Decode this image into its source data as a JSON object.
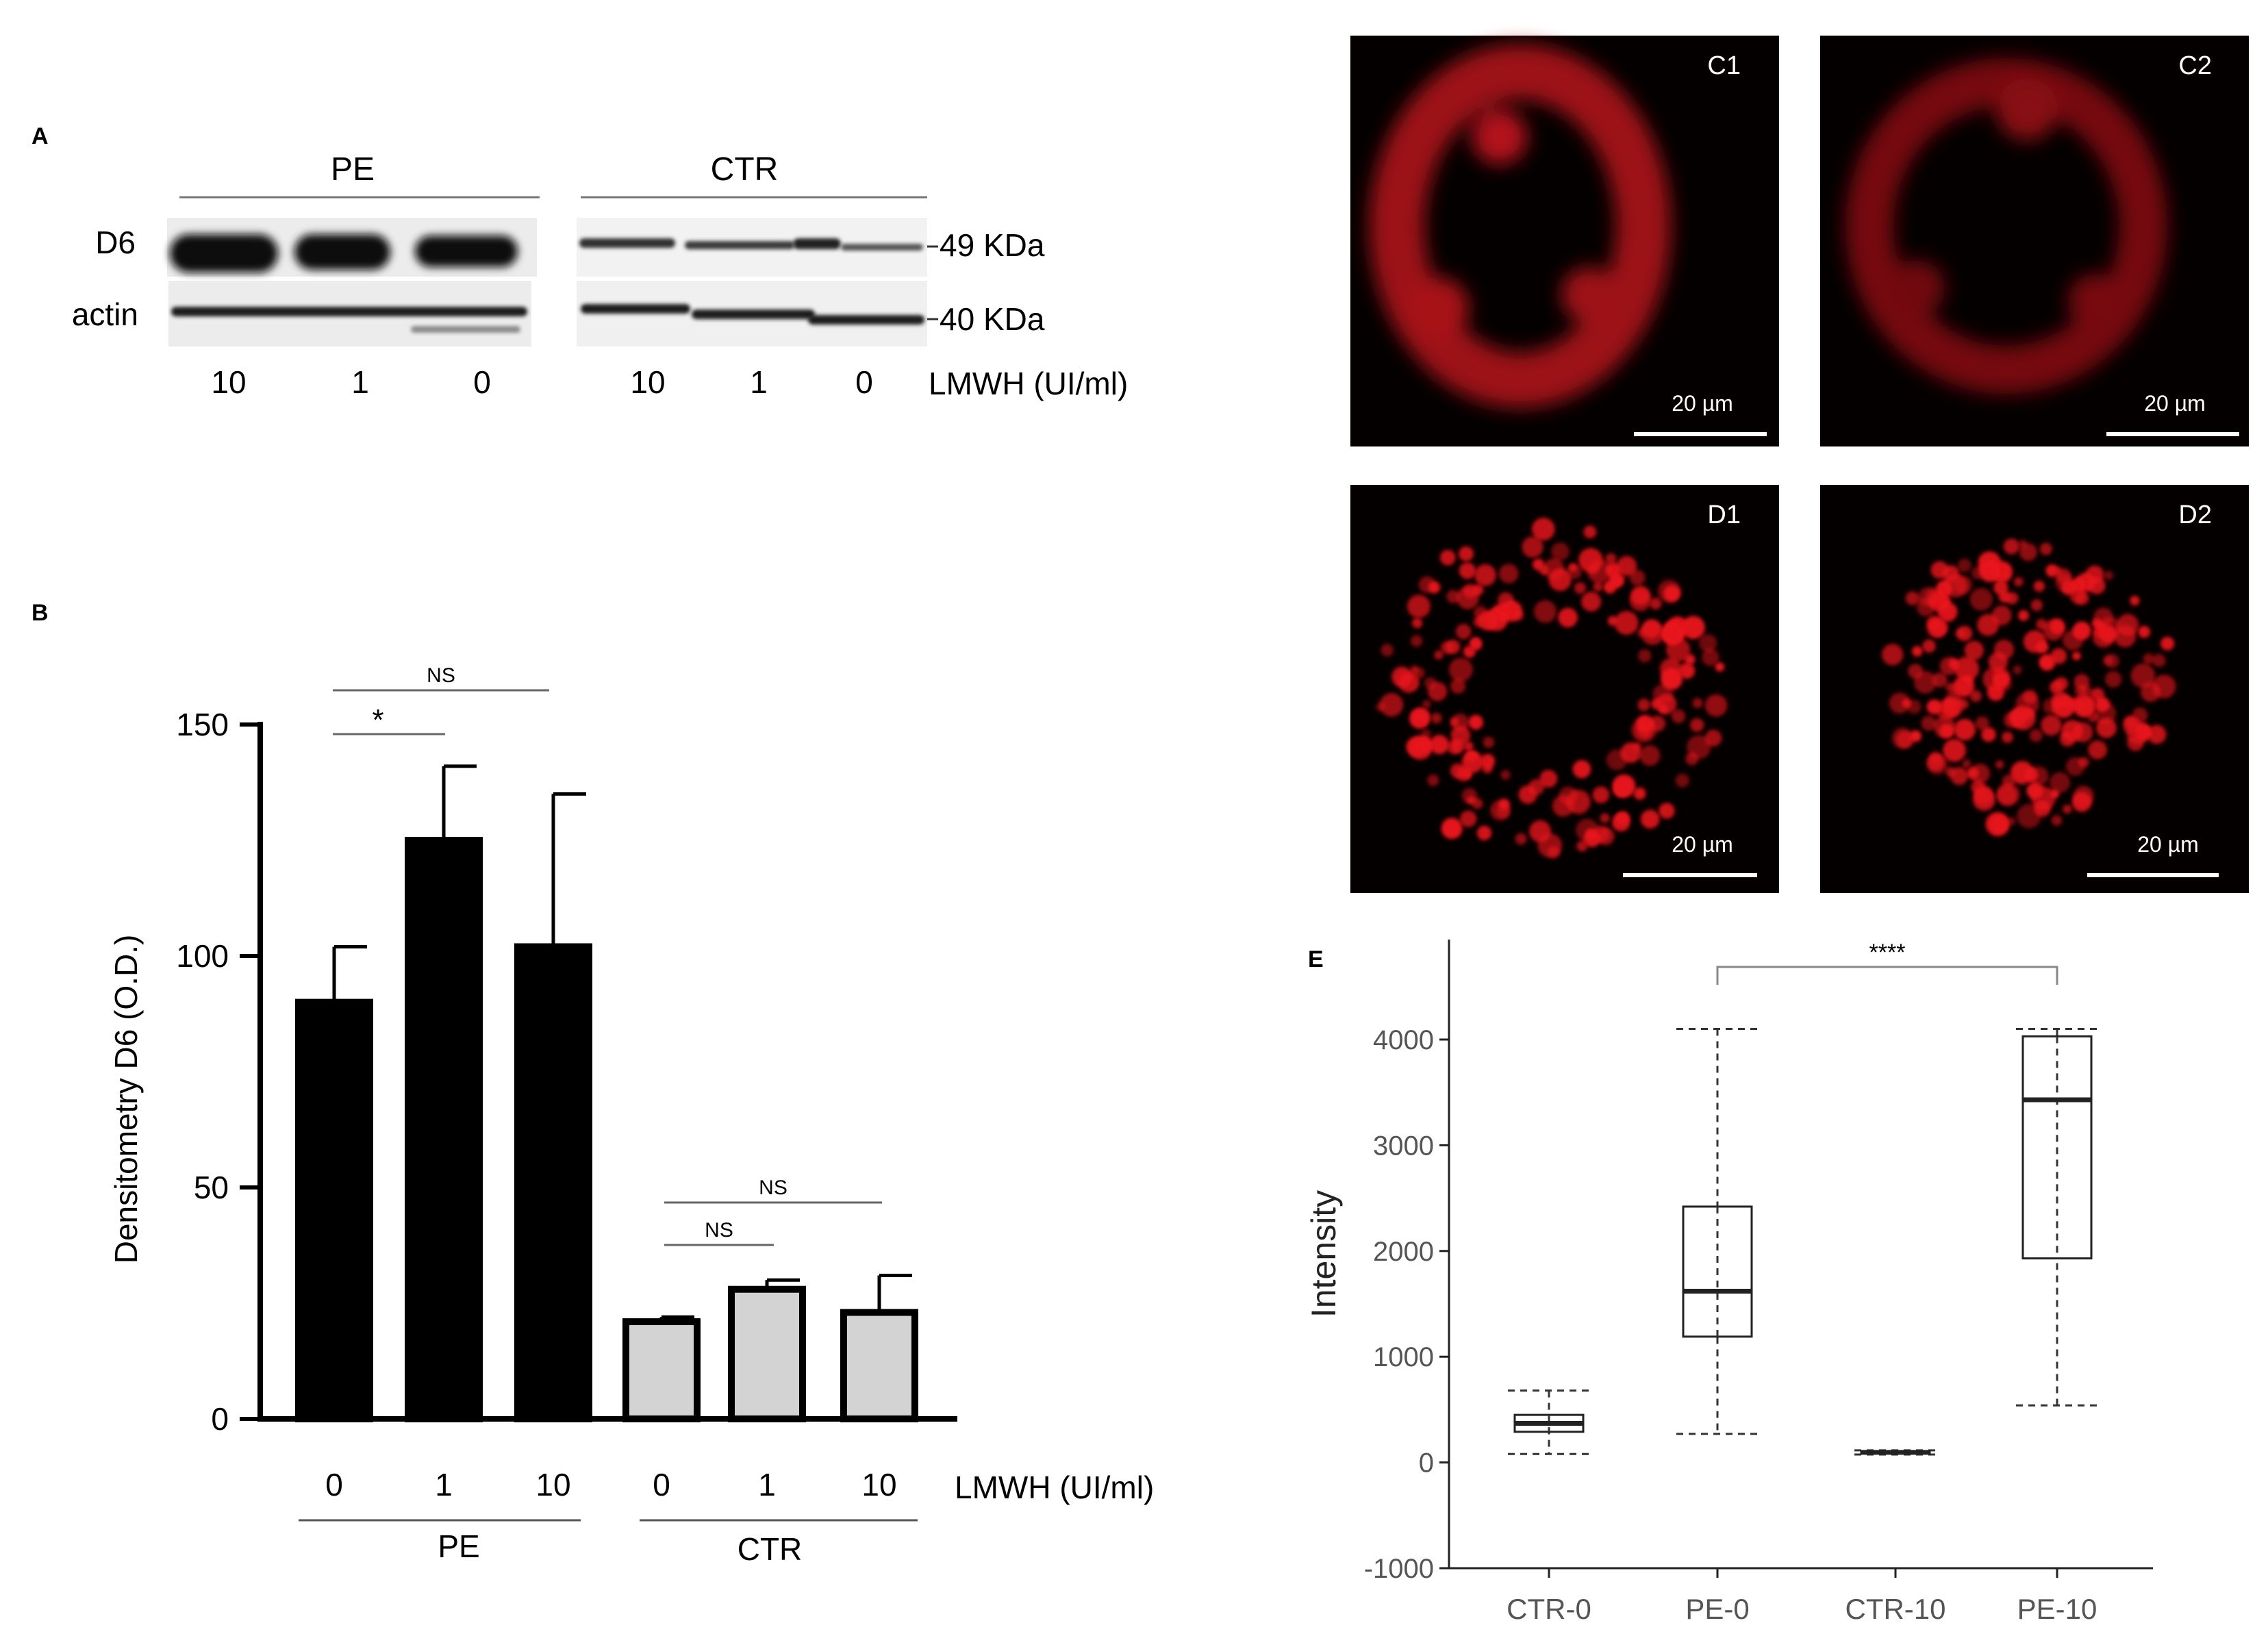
{
  "figure": {
    "panel_a": {
      "letter": "A",
      "group_labels": [
        "PE",
        "CTR"
      ],
      "row_labels": [
        "D6",
        "actin"
      ],
      "mw_labels": [
        "49 KDa",
        "40 KDa"
      ],
      "lane_labels": [
        "10",
        "1",
        "0",
        "10",
        "1",
        "0"
      ],
      "treatment_label": "LMWH (UI/ml)"
    },
    "panel_b": {
      "letter": "B",
      "group_labels": [
        "PE",
        "CTR"
      ]
    },
    "panel_e": {
      "letter": "E"
    },
    "micrographs": [
      {
        "label": "C1",
        "scale_bar": "20 µm"
      },
      {
        "label": "C2",
        "scale_bar": "20 µm"
      },
      {
        "label": "D1",
        "scale_bar": "20 µm"
      },
      {
        "label": "D2",
        "scale_bar": "20 µm"
      }
    ],
    "colors": {
      "bar_pe": "#000000",
      "bar_ctr": "#d3d3d3",
      "fluorescence": "#e8141b",
      "micrograph_bg": "#050000"
    }
  },
  "chart_data": [
    {
      "type": "bar",
      "panel": "B",
      "categories": [
        "0",
        "1",
        "10",
        "0",
        "1",
        "10"
      ],
      "groups": [
        "PE",
        "PE",
        "PE",
        "CTR",
        "CTR",
        "CTR"
      ],
      "values": [
        90,
        125,
        102,
        21,
        28,
        23
      ],
      "errors": [
        12,
        16,
        33,
        1,
        2,
        8
      ],
      "ylabel": "Densitometry D6 (O.D.)",
      "xlabel": "LMWH (UI/ml)",
      "ylim": [
        0,
        150
      ],
      "yticks": [
        0,
        50,
        100,
        150
      ],
      "significance": [
        {
          "from": 0,
          "to": 1,
          "label": "*"
        },
        {
          "from": 0,
          "to": 2,
          "label": "NS"
        },
        {
          "from": 3,
          "to": 4,
          "label": "NS"
        },
        {
          "from": 3,
          "to": 5,
          "label": "NS"
        }
      ]
    },
    {
      "type": "box",
      "panel": "E",
      "categories": [
        "CTR-0",
        "PE-0",
        "CTR-10",
        "PE-10"
      ],
      "boxes": [
        {
          "min": 80,
          "q1": 290,
          "median": 370,
          "q3": 450,
          "max": 680
        },
        {
          "min": 270,
          "q1": 1190,
          "median": 1620,
          "q3": 2420,
          "max": 4100
        },
        {
          "min": 75,
          "q1": 85,
          "median": 95,
          "q3": 105,
          "max": 115
        },
        {
          "min": 540,
          "q1": 1930,
          "median": 3430,
          "q3": 4030,
          "max": 4100
        }
      ],
      "ylabel": "Intensity",
      "ylim": [
        -1000,
        4700
      ],
      "yticks": [
        -1000,
        0,
        1000,
        2000,
        3000,
        4000
      ],
      "significance": [
        {
          "from": 1,
          "to": 3,
          "label": "****"
        }
      ],
      "grid": false
    }
  ]
}
